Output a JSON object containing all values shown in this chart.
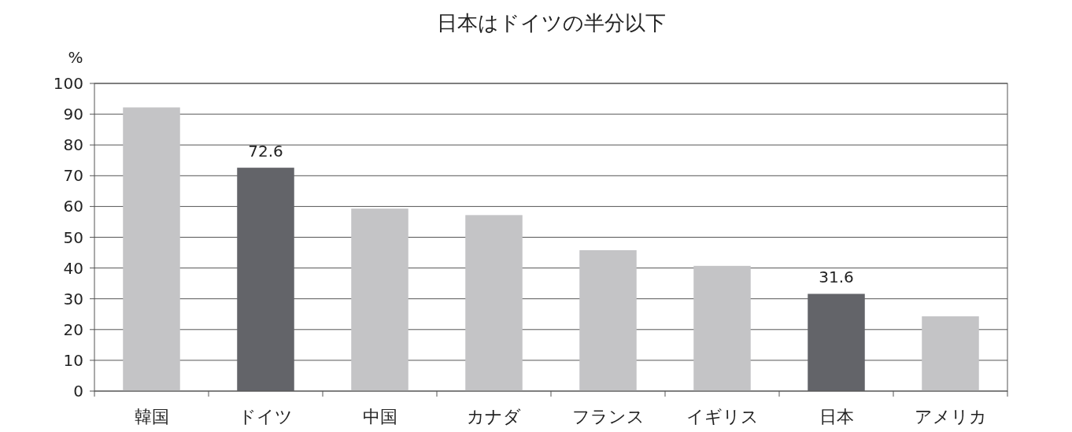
{
  "chart_data": {
    "type": "bar",
    "title": "日本はドイツの半分以下",
    "ylabel": "%",
    "categories": [
      "韓国",
      "ドイツ",
      "中国",
      "カナダ",
      "フランス",
      "イギリス",
      "日本",
      "アメリカ"
    ],
    "values": [
      92.2,
      72.6,
      59.3,
      57.2,
      45.8,
      40.7,
      31.6,
      24.3
    ],
    "colors": [
      "#c4c4c6",
      "#636469",
      "#c4c4c6",
      "#c4c4c6",
      "#c4c4c6",
      "#c4c4c6",
      "#636469",
      "#c4c4c6"
    ],
    "value_labels": [
      null,
      "72.6",
      null,
      null,
      null,
      null,
      "31.6",
      null
    ],
    "ylim": [
      0,
      100
    ],
    "yticks": [
      0,
      10,
      20,
      30,
      40,
      50,
      60,
      70,
      80,
      90,
      100
    ],
    "grid": "y"
  }
}
